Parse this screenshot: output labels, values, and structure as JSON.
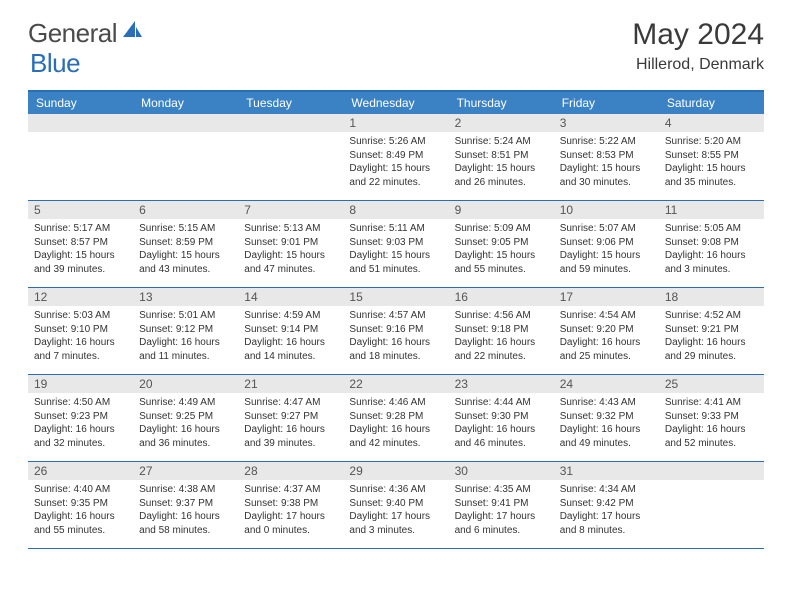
{
  "logo": {
    "text1": "General",
    "text2": "Blue"
  },
  "title": "May 2024",
  "location": "Hillerod, Denmark",
  "colors": {
    "header_bg": "#3b82c4",
    "border": "#2a6db8",
    "daynum_bg": "#e8e8e8",
    "text": "#333333",
    "logo_gray": "#4a4a4a",
    "logo_blue": "#2a6db8"
  },
  "weekdays": [
    "Sunday",
    "Monday",
    "Tuesday",
    "Wednesday",
    "Thursday",
    "Friday",
    "Saturday"
  ],
  "weeks": [
    [
      {
        "day": "",
        "lines": []
      },
      {
        "day": "",
        "lines": []
      },
      {
        "day": "",
        "lines": []
      },
      {
        "day": "1",
        "lines": [
          "Sunrise: 5:26 AM",
          "Sunset: 8:49 PM",
          "Daylight: 15 hours",
          "and 22 minutes."
        ]
      },
      {
        "day": "2",
        "lines": [
          "Sunrise: 5:24 AM",
          "Sunset: 8:51 PM",
          "Daylight: 15 hours",
          "and 26 minutes."
        ]
      },
      {
        "day": "3",
        "lines": [
          "Sunrise: 5:22 AM",
          "Sunset: 8:53 PM",
          "Daylight: 15 hours",
          "and 30 minutes."
        ]
      },
      {
        "day": "4",
        "lines": [
          "Sunrise: 5:20 AM",
          "Sunset: 8:55 PM",
          "Daylight: 15 hours",
          "and 35 minutes."
        ]
      }
    ],
    [
      {
        "day": "5",
        "lines": [
          "Sunrise: 5:17 AM",
          "Sunset: 8:57 PM",
          "Daylight: 15 hours",
          "and 39 minutes."
        ]
      },
      {
        "day": "6",
        "lines": [
          "Sunrise: 5:15 AM",
          "Sunset: 8:59 PM",
          "Daylight: 15 hours",
          "and 43 minutes."
        ]
      },
      {
        "day": "7",
        "lines": [
          "Sunrise: 5:13 AM",
          "Sunset: 9:01 PM",
          "Daylight: 15 hours",
          "and 47 minutes."
        ]
      },
      {
        "day": "8",
        "lines": [
          "Sunrise: 5:11 AM",
          "Sunset: 9:03 PM",
          "Daylight: 15 hours",
          "and 51 minutes."
        ]
      },
      {
        "day": "9",
        "lines": [
          "Sunrise: 5:09 AM",
          "Sunset: 9:05 PM",
          "Daylight: 15 hours",
          "and 55 minutes."
        ]
      },
      {
        "day": "10",
        "lines": [
          "Sunrise: 5:07 AM",
          "Sunset: 9:06 PM",
          "Daylight: 15 hours",
          "and 59 minutes."
        ]
      },
      {
        "day": "11",
        "lines": [
          "Sunrise: 5:05 AM",
          "Sunset: 9:08 PM",
          "Daylight: 16 hours",
          "and 3 minutes."
        ]
      }
    ],
    [
      {
        "day": "12",
        "lines": [
          "Sunrise: 5:03 AM",
          "Sunset: 9:10 PM",
          "Daylight: 16 hours",
          "and 7 minutes."
        ]
      },
      {
        "day": "13",
        "lines": [
          "Sunrise: 5:01 AM",
          "Sunset: 9:12 PM",
          "Daylight: 16 hours",
          "and 11 minutes."
        ]
      },
      {
        "day": "14",
        "lines": [
          "Sunrise: 4:59 AM",
          "Sunset: 9:14 PM",
          "Daylight: 16 hours",
          "and 14 minutes."
        ]
      },
      {
        "day": "15",
        "lines": [
          "Sunrise: 4:57 AM",
          "Sunset: 9:16 PM",
          "Daylight: 16 hours",
          "and 18 minutes."
        ]
      },
      {
        "day": "16",
        "lines": [
          "Sunrise: 4:56 AM",
          "Sunset: 9:18 PM",
          "Daylight: 16 hours",
          "and 22 minutes."
        ]
      },
      {
        "day": "17",
        "lines": [
          "Sunrise: 4:54 AM",
          "Sunset: 9:20 PM",
          "Daylight: 16 hours",
          "and 25 minutes."
        ]
      },
      {
        "day": "18",
        "lines": [
          "Sunrise: 4:52 AM",
          "Sunset: 9:21 PM",
          "Daylight: 16 hours",
          "and 29 minutes."
        ]
      }
    ],
    [
      {
        "day": "19",
        "lines": [
          "Sunrise: 4:50 AM",
          "Sunset: 9:23 PM",
          "Daylight: 16 hours",
          "and 32 minutes."
        ]
      },
      {
        "day": "20",
        "lines": [
          "Sunrise: 4:49 AM",
          "Sunset: 9:25 PM",
          "Daylight: 16 hours",
          "and 36 minutes."
        ]
      },
      {
        "day": "21",
        "lines": [
          "Sunrise: 4:47 AM",
          "Sunset: 9:27 PM",
          "Daylight: 16 hours",
          "and 39 minutes."
        ]
      },
      {
        "day": "22",
        "lines": [
          "Sunrise: 4:46 AM",
          "Sunset: 9:28 PM",
          "Daylight: 16 hours",
          "and 42 minutes."
        ]
      },
      {
        "day": "23",
        "lines": [
          "Sunrise: 4:44 AM",
          "Sunset: 9:30 PM",
          "Daylight: 16 hours",
          "and 46 minutes."
        ]
      },
      {
        "day": "24",
        "lines": [
          "Sunrise: 4:43 AM",
          "Sunset: 9:32 PM",
          "Daylight: 16 hours",
          "and 49 minutes."
        ]
      },
      {
        "day": "25",
        "lines": [
          "Sunrise: 4:41 AM",
          "Sunset: 9:33 PM",
          "Daylight: 16 hours",
          "and 52 minutes."
        ]
      }
    ],
    [
      {
        "day": "26",
        "lines": [
          "Sunrise: 4:40 AM",
          "Sunset: 9:35 PM",
          "Daylight: 16 hours",
          "and 55 minutes."
        ]
      },
      {
        "day": "27",
        "lines": [
          "Sunrise: 4:38 AM",
          "Sunset: 9:37 PM",
          "Daylight: 16 hours",
          "and 58 minutes."
        ]
      },
      {
        "day": "28",
        "lines": [
          "Sunrise: 4:37 AM",
          "Sunset: 9:38 PM",
          "Daylight: 17 hours",
          "and 0 minutes."
        ]
      },
      {
        "day": "29",
        "lines": [
          "Sunrise: 4:36 AM",
          "Sunset: 9:40 PM",
          "Daylight: 17 hours",
          "and 3 minutes."
        ]
      },
      {
        "day": "30",
        "lines": [
          "Sunrise: 4:35 AM",
          "Sunset: 9:41 PM",
          "Daylight: 17 hours",
          "and 6 minutes."
        ]
      },
      {
        "day": "31",
        "lines": [
          "Sunrise: 4:34 AM",
          "Sunset: 9:42 PM",
          "Daylight: 17 hours",
          "and 8 minutes."
        ]
      },
      {
        "day": "",
        "lines": []
      }
    ]
  ]
}
